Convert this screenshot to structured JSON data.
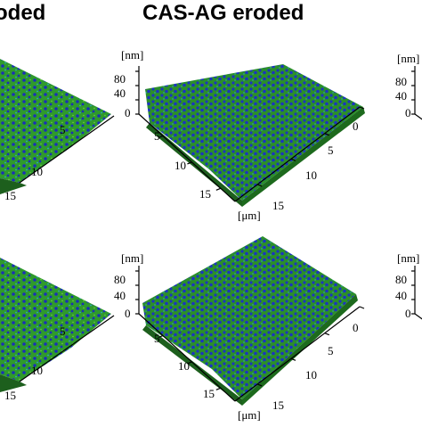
{
  "titles": {
    "left": "oded",
    "center": "CAS-AG eroded"
  },
  "axes": {
    "z_unit": "[nm]",
    "xy_unit": "[μm]",
    "z_ticks": [
      "80",
      "40",
      "0"
    ],
    "x_ticks": [
      "0",
      "5",
      "10",
      "15"
    ],
    "y_ticks": [
      "5",
      "10",
      "15"
    ]
  },
  "colors": {
    "surface_green": "#2f9a2c",
    "surface_blue": "#1a2fb8",
    "surface_cyan": "#2aa6c7",
    "peak_yellow": "#c9b23a"
  }
}
